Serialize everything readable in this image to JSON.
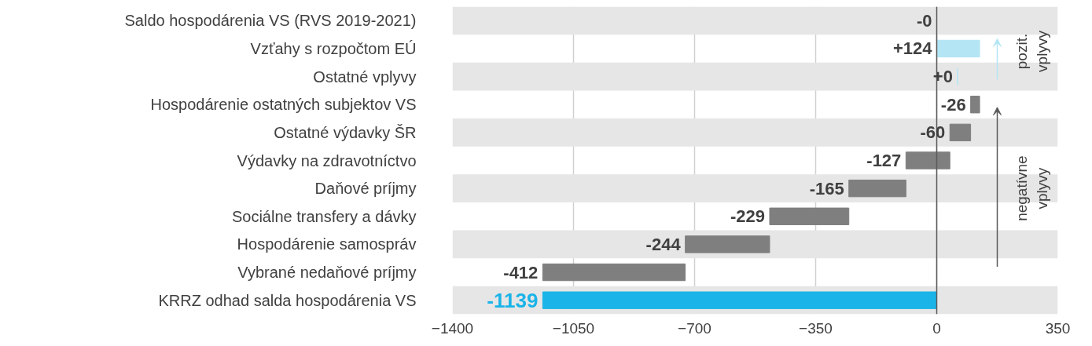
{
  "chart_data": {
    "type": "bar",
    "orientation": "horizontal",
    "categories": [
      "Saldo hospodárenia VS (RVS 2019-2021)",
      "Vzťahy s rozpočtom EÚ",
      "Ostatné vplyvy",
      "Hospodárenie ostatných subjektov VS",
      "Ostatné výdavky ŠR",
      "Výdavky na zdravotníctvo",
      "Daňové príjmy",
      "Sociálne transfery a dávky",
      "Hospodárenie samospráv",
      "Vybrané nedaňové príjmy",
      "KRRZ odhad salda hospodárenia VS"
    ],
    "values": [
      0,
      124,
      0,
      -26,
      -60,
      -127,
      -165,
      -229,
      -244,
      -412,
      -1139
    ],
    "base": [
      null,
      0,
      60,
      124,
      98,
      38,
      -89,
      -254,
      -483,
      -727,
      0
    ],
    "colors": [
      "#7f7f7f",
      "#b3e5f5",
      "#b3e5f5",
      "#7f7f7f",
      "#7f7f7f",
      "#7f7f7f",
      "#7f7f7f",
      "#7f7f7f",
      "#7f7f7f",
      "#7f7f7f",
      "#1ab4e8"
    ],
    "value_labels": [
      "-0",
      "+124",
      "+0",
      "-26",
      "-60",
      "-127",
      "-165",
      "-229",
      "-244",
      "-412",
      "-1139"
    ],
    "xlim": [
      -1400,
      350
    ],
    "xticks": [
      -1400,
      -1050,
      -700,
      -350,
      0,
      350
    ],
    "grid": "x",
    "ref_lines": [
      {
        "axis": "x",
        "value": 0,
        "color": "#595959"
      }
    ],
    "annotations": [
      "pozit.\nvplyvy",
      "negatívne\nvplyvy"
    ]
  }
}
